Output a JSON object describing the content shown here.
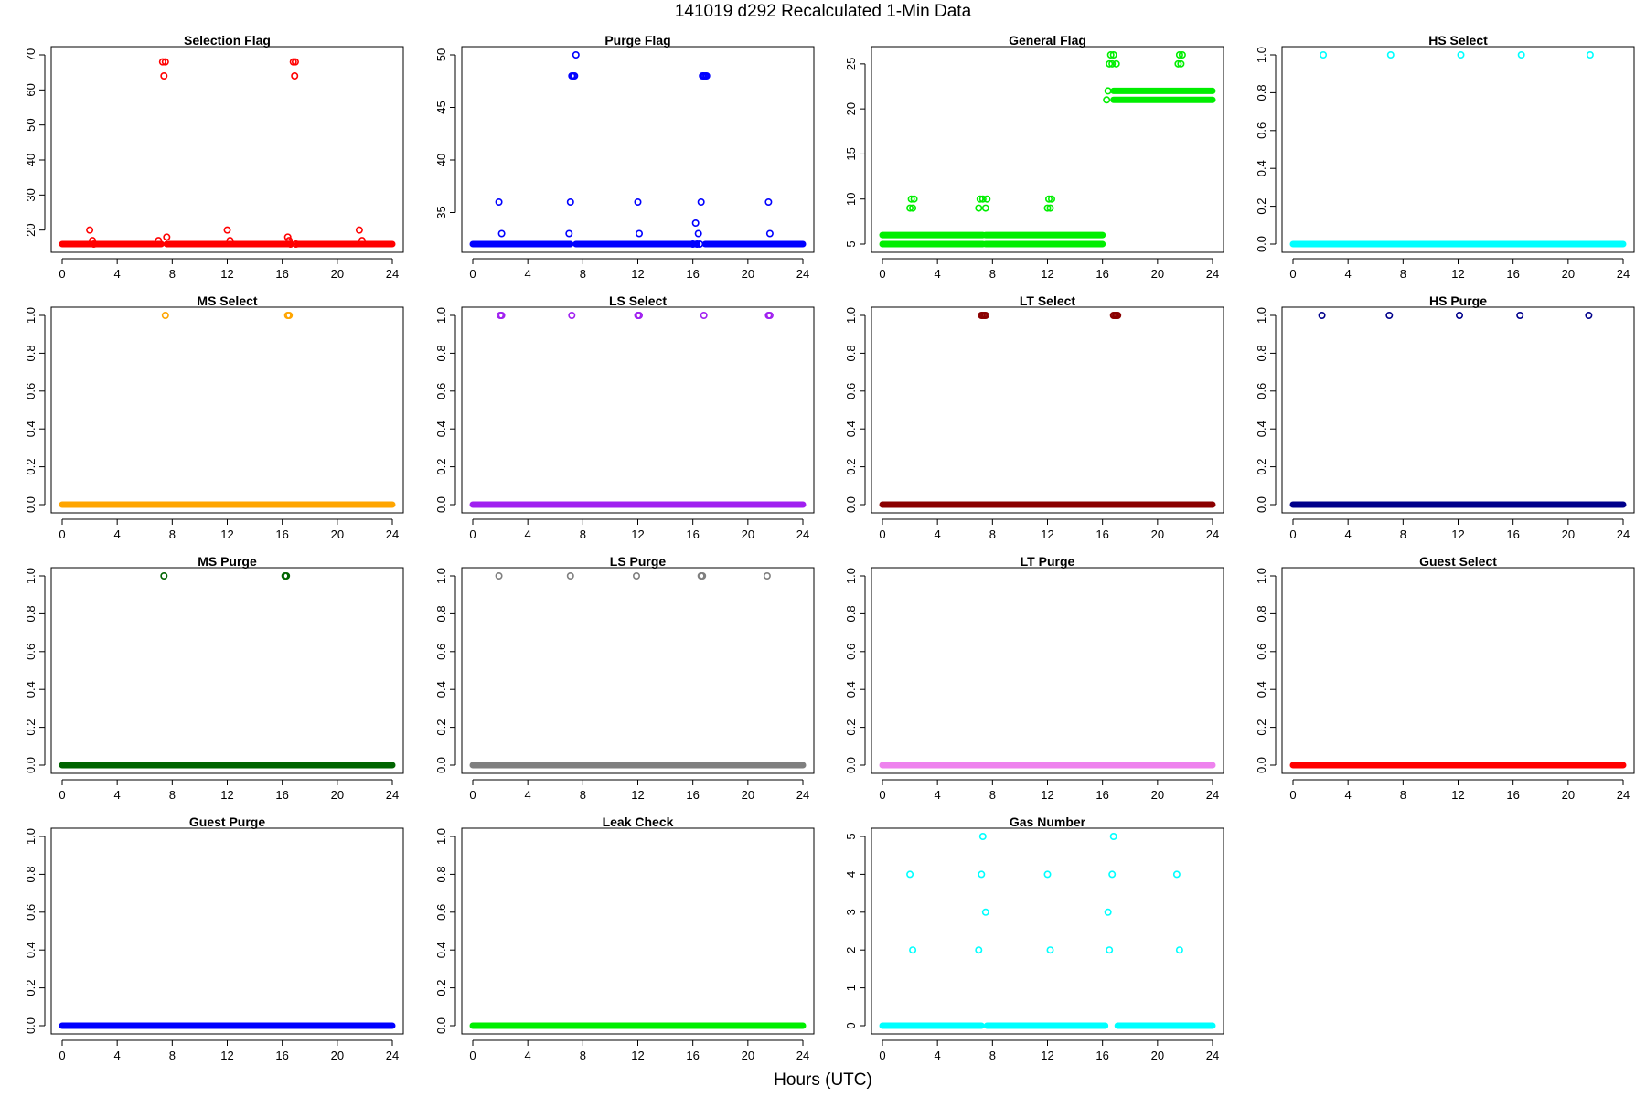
{
  "figure": {
    "title": "141019   d292   Recalculated 1-Min Data",
    "xlabel": "Hours (UTC)"
  },
  "chart_data": [
    {
      "type": "scatter",
      "title": "Selection Flag",
      "color": "#ff0000",
      "xlim": [
        0,
        24
      ],
      "xticks": [
        0,
        4,
        8,
        12,
        16,
        20,
        24
      ],
      "ylim": [
        16,
        70
      ],
      "yticks": [
        20,
        30,
        40,
        50,
        60,
        70
      ],
      "bands": [
        {
          "x": [
            0,
            7.2
          ],
          "y": 16
        },
        {
          "x": [
            7.6,
            16.6
          ],
          "y": 16
        },
        {
          "x": [
            17.1,
            24
          ],
          "y": 16
        }
      ],
      "points": [
        [
          2,
          20
        ],
        [
          2.2,
          17
        ],
        [
          2.3,
          16
        ],
        [
          7,
          17
        ],
        [
          7.3,
          68
        ],
        [
          7.4,
          64
        ],
        [
          7.5,
          68
        ],
        [
          7.6,
          18
        ],
        [
          12,
          20
        ],
        [
          12.2,
          17
        ],
        [
          16.4,
          18
        ],
        [
          16.5,
          17
        ],
        [
          16.6,
          16
        ],
        [
          16.8,
          68
        ],
        [
          16.9,
          64
        ],
        [
          16.95,
          68
        ],
        [
          17,
          16
        ],
        [
          21.6,
          20
        ],
        [
          21.8,
          17
        ]
      ]
    },
    {
      "type": "scatter",
      "title": "Purge Flag",
      "color": "#0000ff",
      "xlim": [
        0,
        24
      ],
      "xticks": [
        0,
        4,
        8,
        12,
        16,
        20,
        24
      ],
      "ylim": [
        32,
        50
      ],
      "yticks": [
        35,
        40,
        45,
        50
      ],
      "bands": [
        {
          "x": [
            0,
            7.1
          ],
          "y": 32
        },
        {
          "x": [
            7.5,
            16.3
          ],
          "y": 32
        },
        {
          "x": [
            16.9,
            24
          ],
          "y": 32
        }
      ],
      "points": [
        [
          1.9,
          36
        ],
        [
          2.1,
          33
        ],
        [
          7,
          33
        ],
        [
          7.1,
          36
        ],
        [
          7.2,
          48
        ],
        [
          7.3,
          48
        ],
        [
          7.4,
          48
        ],
        [
          7.5,
          50
        ],
        [
          12,
          36
        ],
        [
          12.1,
          33
        ],
        [
          16,
          32
        ],
        [
          16.2,
          34
        ],
        [
          16.3,
          32
        ],
        [
          16.4,
          33
        ],
        [
          16.5,
          32
        ],
        [
          16.6,
          36
        ],
        [
          16.7,
          48
        ],
        [
          16.8,
          48
        ],
        [
          16.9,
          48
        ],
        [
          17,
          48
        ],
        [
          21.5,
          36
        ],
        [
          21.6,
          33
        ]
      ]
    },
    {
      "type": "scatter",
      "title": "General Flag",
      "color": "#00ee00",
      "xlim": [
        0,
        24
      ],
      "xticks": [
        0,
        4,
        8,
        12,
        16,
        20,
        24
      ],
      "ylim": [
        5,
        26
      ],
      "yticks": [
        5,
        10,
        15,
        20,
        25
      ],
      "bands": [
        {
          "x": [
            0,
            7.3
          ],
          "y": 5
        },
        {
          "x": [
            0,
            7.3
          ],
          "y": 6
        },
        {
          "x": [
            7.5,
            16
          ],
          "y": 5
        },
        {
          "x": [
            7.5,
            16
          ],
          "y": 6
        },
        {
          "x": [
            16.8,
            24
          ],
          "y": 21
        },
        {
          "x": [
            16.8,
            24
          ],
          "y": 22
        }
      ],
      "points": [
        [
          2,
          9
        ],
        [
          2.1,
          10
        ],
        [
          2.2,
          9
        ],
        [
          2.3,
          10
        ],
        [
          7,
          9
        ],
        [
          7.1,
          10
        ],
        [
          7.3,
          10
        ],
        [
          7.5,
          9
        ],
        [
          7.6,
          10
        ],
        [
          12,
          9
        ],
        [
          12.1,
          10
        ],
        [
          12.2,
          9
        ],
        [
          12.3,
          10
        ],
        [
          16.3,
          21
        ],
        [
          16.4,
          22
        ],
        [
          16.5,
          25
        ],
        [
          16.6,
          26
        ],
        [
          16.7,
          25
        ],
        [
          16.8,
          26
        ],
        [
          17,
          25
        ],
        [
          21.5,
          25
        ],
        [
          21.6,
          26
        ],
        [
          21.7,
          25
        ],
        [
          21.8,
          26
        ]
      ]
    },
    {
      "type": "scatter",
      "title": "HS Select",
      "color": "#00ffff",
      "xlim": [
        0,
        24
      ],
      "xticks": [
        0,
        4,
        8,
        12,
        16,
        20,
        24
      ],
      "ylim": [
        0,
        1
      ],
      "yticks": [
        0.0,
        0.2,
        0.4,
        0.6,
        0.8,
        1.0
      ],
      "bands": [
        {
          "x": [
            0,
            24
          ],
          "y": 0
        }
      ],
      "points": [
        [
          2.2,
          1
        ],
        [
          7.1,
          1
        ],
        [
          12.2,
          1
        ],
        [
          16.6,
          1
        ],
        [
          21.6,
          1
        ]
      ]
    },
    {
      "type": "scatter",
      "title": "MS Select",
      "color": "#ffa500",
      "xlim": [
        0,
        24
      ],
      "xticks": [
        0,
        4,
        8,
        12,
        16,
        20,
        24
      ],
      "ylim": [
        0,
        1
      ],
      "yticks": [
        0.0,
        0.2,
        0.4,
        0.6,
        0.8,
        1.0
      ],
      "bands": [
        {
          "x": [
            0,
            24
          ],
          "y": 0
        }
      ],
      "points": [
        [
          7.5,
          1
        ],
        [
          16.4,
          1
        ],
        [
          16.5,
          1
        ]
      ]
    },
    {
      "type": "scatter",
      "title": "LS Select",
      "color": "#a020f0",
      "xlim": [
        0,
        24
      ],
      "xticks": [
        0,
        4,
        8,
        12,
        16,
        20,
        24
      ],
      "ylim": [
        0,
        1
      ],
      "yticks": [
        0.0,
        0.2,
        0.4,
        0.6,
        0.8,
        1.0
      ],
      "bands": [
        {
          "x": [
            0,
            24
          ],
          "y": 0
        }
      ],
      "points": [
        [
          2,
          1
        ],
        [
          2.1,
          1
        ],
        [
          7.2,
          1
        ],
        [
          12,
          1
        ],
        [
          12.1,
          1
        ],
        [
          16.8,
          1
        ],
        [
          21.5,
          1
        ],
        [
          21.6,
          1
        ]
      ]
    },
    {
      "type": "scatter",
      "title": "LT Select",
      "color": "#8b0000",
      "xlim": [
        0,
        24
      ],
      "xticks": [
        0,
        4,
        8,
        12,
        16,
        20,
        24
      ],
      "ylim": [
        0,
        1
      ],
      "yticks": [
        0.0,
        0.2,
        0.4,
        0.6,
        0.8,
        1.0
      ],
      "bands": [
        {
          "x": [
            0,
            24
          ],
          "y": 0
        }
      ],
      "points": [
        [
          7.2,
          1
        ],
        [
          7.3,
          1
        ],
        [
          7.4,
          1
        ],
        [
          7.5,
          1
        ],
        [
          16.8,
          1
        ],
        [
          16.9,
          1
        ],
        [
          17,
          1
        ],
        [
          17.1,
          1
        ]
      ]
    },
    {
      "type": "scatter",
      "title": "HS Purge",
      "color": "#00008b",
      "xlim": [
        0,
        24
      ],
      "xticks": [
        0,
        4,
        8,
        12,
        16,
        20,
        24
      ],
      "ylim": [
        0,
        1
      ],
      "yticks": [
        0.0,
        0.2,
        0.4,
        0.6,
        0.8,
        1.0
      ],
      "bands": [
        {
          "x": [
            0,
            24
          ],
          "y": 0
        }
      ],
      "points": [
        [
          2.1,
          1
        ],
        [
          7,
          1
        ],
        [
          12.1,
          1
        ],
        [
          16.5,
          1
        ],
        [
          21.5,
          1
        ]
      ]
    },
    {
      "type": "scatter",
      "title": "MS Purge",
      "color": "#006400",
      "xlim": [
        0,
        24
      ],
      "xticks": [
        0,
        4,
        8,
        12,
        16,
        20,
        24
      ],
      "ylim": [
        0,
        1
      ],
      "yticks": [
        0.0,
        0.2,
        0.4,
        0.6,
        0.8,
        1.0
      ],
      "bands": [
        {
          "x": [
            0,
            24
          ],
          "y": 0
        }
      ],
      "points": [
        [
          7.4,
          1
        ],
        [
          16.2,
          1
        ],
        [
          16.3,
          1
        ]
      ]
    },
    {
      "type": "scatter",
      "title": "LS Purge",
      "color": "#7f7f7f",
      "xlim": [
        0,
        24
      ],
      "xticks": [
        0,
        4,
        8,
        12,
        16,
        20,
        24
      ],
      "ylim": [
        0,
        1
      ],
      "yticks": [
        0.0,
        0.2,
        0.4,
        0.6,
        0.8,
        1.0
      ],
      "bands": [
        {
          "x": [
            0,
            24
          ],
          "y": 0
        }
      ],
      "points": [
        [
          1.9,
          1
        ],
        [
          7.1,
          1
        ],
        [
          11.9,
          1
        ],
        [
          16.6,
          1
        ],
        [
          16.7,
          1
        ],
        [
          21.4,
          1
        ]
      ]
    },
    {
      "type": "scatter",
      "title": "LT Purge",
      "color": "#ee82ee",
      "xlim": [
        0,
        24
      ],
      "xticks": [
        0,
        4,
        8,
        12,
        16,
        20,
        24
      ],
      "ylim": [
        0,
        1
      ],
      "yticks": [
        0.0,
        0.2,
        0.4,
        0.6,
        0.8,
        1.0
      ],
      "bands": [
        {
          "x": [
            0,
            24
          ],
          "y": 0
        }
      ],
      "points": []
    },
    {
      "type": "scatter",
      "title": "Guest Select",
      "color": "#ff0000",
      "xlim": [
        0,
        24
      ],
      "xticks": [
        0,
        4,
        8,
        12,
        16,
        20,
        24
      ],
      "ylim": [
        0,
        1
      ],
      "yticks": [
        0.0,
        0.2,
        0.4,
        0.6,
        0.8,
        1.0
      ],
      "bands": [
        {
          "x": [
            0,
            24
          ],
          "y": 0
        }
      ],
      "points": []
    },
    {
      "type": "scatter",
      "title": "Guest Purge",
      "color": "#0000ff",
      "xlim": [
        0,
        24
      ],
      "xticks": [
        0,
        4,
        8,
        12,
        16,
        20,
        24
      ],
      "ylim": [
        0,
        1
      ],
      "yticks": [
        0.0,
        0.2,
        0.4,
        0.6,
        0.8,
        1.0
      ],
      "bands": [
        {
          "x": [
            0,
            24
          ],
          "y": 0
        }
      ],
      "points": []
    },
    {
      "type": "scatter",
      "title": "Leak Check",
      "color": "#00ee00",
      "xlim": [
        0,
        24
      ],
      "xticks": [
        0,
        4,
        8,
        12,
        16,
        20,
        24
      ],
      "ylim": [
        0,
        1
      ],
      "yticks": [
        0.0,
        0.2,
        0.4,
        0.6,
        0.8,
        1.0
      ],
      "bands": [
        {
          "x": [
            0,
            24
          ],
          "y": 0
        }
      ],
      "points": []
    },
    {
      "type": "scatter",
      "title": "Gas Number",
      "color": "#00ffff",
      "xlim": [
        0,
        24
      ],
      "xticks": [
        0,
        4,
        8,
        12,
        16,
        20,
        24
      ],
      "ylim": [
        0,
        5
      ],
      "yticks": [
        0,
        1,
        2,
        3,
        4,
        5
      ],
      "bands": [
        {
          "x": [
            0,
            7.2
          ],
          "y": 0
        },
        {
          "x": [
            7.6,
            16.2
          ],
          "y": 0
        },
        {
          "x": [
            17.1,
            24
          ],
          "y": 0
        }
      ],
      "points": [
        [
          2,
          4
        ],
        [
          2.2,
          2
        ],
        [
          7,
          2
        ],
        [
          7.2,
          4
        ],
        [
          7.3,
          5
        ],
        [
          7.5,
          3
        ],
        [
          12,
          4
        ],
        [
          12.2,
          2
        ],
        [
          16.4,
          3
        ],
        [
          16.5,
          2
        ],
        [
          16.7,
          4
        ],
        [
          16.8,
          5
        ],
        [
          21.4,
          4
        ],
        [
          21.6,
          2
        ]
      ]
    }
  ]
}
